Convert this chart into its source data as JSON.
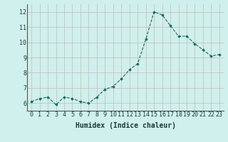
{
  "x": [
    0,
    1,
    2,
    3,
    4,
    5,
    6,
    7,
    8,
    9,
    10,
    11,
    12,
    13,
    14,
    15,
    16,
    17,
    18,
    19,
    20,
    21,
    22,
    23
  ],
  "y": [
    6.1,
    6.3,
    6.4,
    5.9,
    6.4,
    6.3,
    6.1,
    6.0,
    6.4,
    6.9,
    7.1,
    7.6,
    8.2,
    8.6,
    10.2,
    12.0,
    11.8,
    11.1,
    10.4,
    10.4,
    9.9,
    9.5,
    9.1,
    9.2
  ],
  "line_color": "#1a6b5a",
  "marker": "D",
  "marker_size": 1.8,
  "bg_color": "#cff0ec",
  "grid_color": "#c8b8b8",
  "xlabel": "Humidex (Indice chaleur)",
  "xlabel_fontsize": 7,
  "tick_fontsize": 6,
  "xlim": [
    -0.5,
    23.5
  ],
  "ylim": [
    5.5,
    12.5
  ],
  "yticks": [
    6,
    7,
    8,
    9,
    10,
    11,
    12
  ],
  "xticks": [
    0,
    1,
    2,
    3,
    4,
    5,
    6,
    7,
    8,
    9,
    10,
    11,
    12,
    13,
    14,
    15,
    16,
    17,
    18,
    19,
    20,
    21,
    22,
    23
  ]
}
